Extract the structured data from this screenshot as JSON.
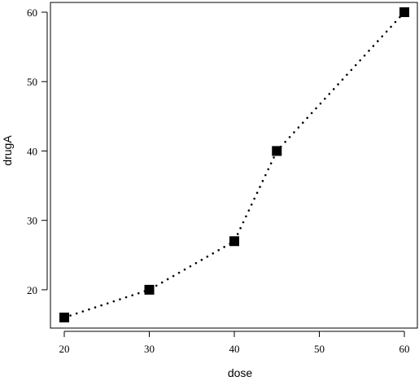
{
  "chart_data": {
    "type": "line",
    "title": "",
    "xlabel": "dose",
    "ylabel": "drugA",
    "x": [
      20,
      30,
      40,
      45,
      60
    ],
    "series": [
      {
        "values": [
          16,
          20,
          27,
          40,
          60
        ]
      }
    ],
    "xticks": [
      20,
      30,
      40,
      50,
      60
    ],
    "yticks": [
      20,
      30,
      40,
      50,
      60
    ],
    "xlim": [
      20,
      60
    ],
    "ylim": [
      16,
      60
    ],
    "grid": false,
    "line_style": "dotted",
    "marker": "filled-square",
    "colors": {
      "line": "#000000",
      "marker": "#000000",
      "frame": "#000000"
    }
  }
}
